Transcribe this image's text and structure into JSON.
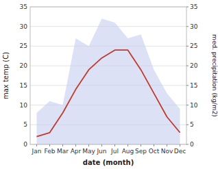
{
  "chart_data": {
    "type": "line",
    "categories": [
      "Jan",
      "Feb",
      "Mar",
      "Apr",
      "May",
      "Jun",
      "Jul",
      "Aug",
      "Sep",
      "Oct",
      "Nov",
      "Dec"
    ],
    "series": [
      {
        "type": "area",
        "color": "#c5cdf0",
        "axis": "y2",
        "values": [
          8,
          11,
          10,
          27,
          25,
          32,
          31,
          27,
          28,
          19,
          13,
          9
        ]
      },
      {
        "type": "line",
        "color": "#c0392b",
        "values": [
          2,
          3,
          8,
          14,
          19,
          22,
          24,
          24,
          19,
          13,
          7,
          3
        ]
      }
    ],
    "xlabel": "date (month)",
    "ylabel": "max temp (C)",
    "y2label": "med. precipitation (kg/m2)",
    "ylim": [
      0,
      35
    ],
    "yticks": [
      0,
      5,
      10,
      15,
      20,
      25,
      30,
      35
    ],
    "y2lim": [
      0,
      35
    ],
    "y2ticks": [
      0,
      5,
      10,
      15,
      20,
      25,
      30,
      35
    ],
    "grid": true
  }
}
